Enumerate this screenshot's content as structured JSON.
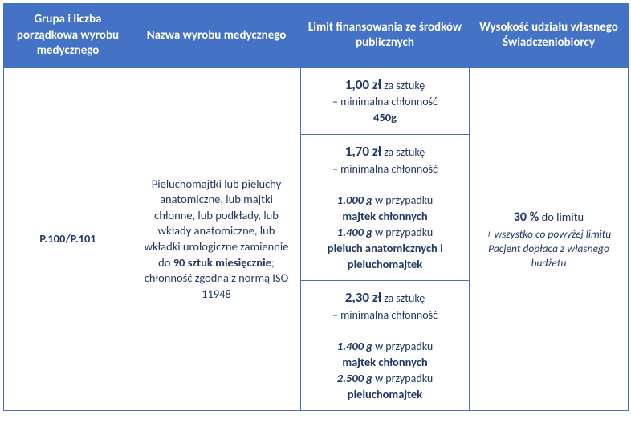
{
  "headers": {
    "c0": "Grupa i liczba porządkowa wyrobu medycznego",
    "c1": "Nazwa wyrobu medycznego",
    "c2": "Limit finansowania ze środków publicznych",
    "c3": "Wysokość udziału własnego Świadczeniobiorcy"
  },
  "code": "P.100/P.101",
  "desc": {
    "pre": "Pieluchomajtki lub pieluchy anatomiczne, lub majtki chłonne, lub podkłady, lub wkłady anatomiczne, lub wkładki urologiczne zamiennie do ",
    "qty": "90 sztuk miesięcznie",
    "post": "; chłonność zgodna z normą ISO 11948"
  },
  "tiers": {
    "t1": {
      "price": "1,00 zł",
      "unit": " za sztukę",
      "sub": "– minimalna chłonność",
      "val": "450g"
    },
    "t2": {
      "price": "1,70 zł",
      "unit": " za sztukę",
      "sub": "– minimalna chłonność",
      "g1": "1.000 g",
      "case1a": " w przypadku ",
      "prod1": "majtek chłonnych",
      "g2": "1.400 g",
      "case2a": " w przypadku ",
      "prod2a": "pieluch anatomicznych",
      "and": " i ",
      "prod2b": "pieluchomajtek"
    },
    "t3": {
      "price": "2,30 zł",
      "unit": " za sztukę",
      "sub": "– minimalna chłonność",
      "g1": "1.400 g",
      "case1a": " w przypadku ",
      "prod1": "majtek chłonnych",
      "g2": "2.500 g",
      "case2a": " w przypadku ",
      "prod2": "pieluchomajtek"
    }
  },
  "share": {
    "pct": "30 %",
    "pct_suffix": " do limitu",
    "note": "+ wszystko co powyżej limitu Pacjent dopłaca z własnego budżetu"
  }
}
